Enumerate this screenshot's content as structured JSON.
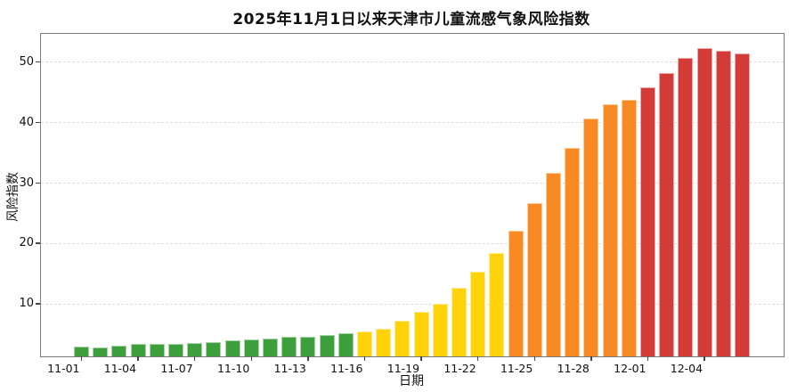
{
  "chart_data": {
    "type": "bar",
    "title": "2025年11月1日以来天津市儿童流感气象风险指数",
    "xlabel": "日期",
    "ylabel": "风险指数",
    "ylim": [
      1.3,
      54.6
    ],
    "yticks": [
      10,
      20,
      30,
      40,
      50
    ],
    "grid": "horizontal-dashed",
    "legend": "none",
    "xtick_step": 3,
    "x": [
      "11-01",
      "11-02",
      "11-03",
      "11-04",
      "11-05",
      "11-06",
      "11-07",
      "11-08",
      "11-09",
      "11-10",
      "11-11",
      "11-12",
      "11-13",
      "11-14",
      "11-15",
      "11-16",
      "11-17",
      "11-18",
      "11-19",
      "11-20",
      "11-21",
      "11-22",
      "11-23",
      "11-24",
      "11-25",
      "11-26",
      "11-27",
      "11-28",
      "11-29",
      "11-30",
      "12-01",
      "12-02",
      "12-03",
      "12-04",
      "12-05",
      "12-06"
    ],
    "values": [
      2.9,
      2.8,
      3.1,
      3.3,
      3.4,
      3.4,
      3.5,
      3.7,
      4.0,
      4.1,
      4.3,
      4.5,
      4.6,
      4.9,
      5.1,
      5.4,
      5.9,
      7.2,
      8.6,
      10.0,
      12.6,
      15.3,
      18.4,
      22.0,
      26.6,
      31.6,
      35.7,
      40.6,
      43.0,
      43.7,
      45.8,
      48.1,
      50.7,
      52.2,
      51.8,
      51.3
    ],
    "levels": [
      "green",
      "green",
      "green",
      "green",
      "green",
      "green",
      "green",
      "green",
      "green",
      "green",
      "green",
      "green",
      "green",
      "green",
      "green",
      "yellow",
      "yellow",
      "yellow",
      "yellow",
      "yellow",
      "yellow",
      "yellow",
      "yellow",
      "orange",
      "orange",
      "orange",
      "orange",
      "orange",
      "orange",
      "orange",
      "red",
      "red",
      "red",
      "red",
      "red",
      "red"
    ],
    "palette": {
      "green": "#3EA03C",
      "yellow": "#FFD30A",
      "orange": "#F88923",
      "red": "#D23B38"
    }
  }
}
